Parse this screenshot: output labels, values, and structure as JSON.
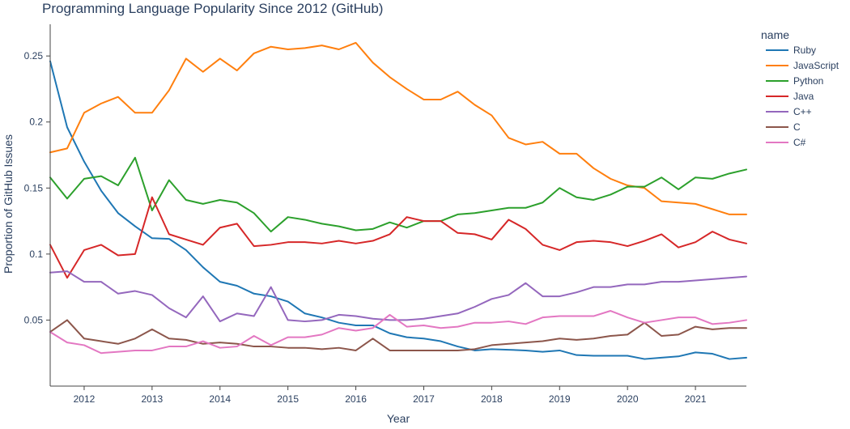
{
  "chart_data": {
    "type": "line",
    "title": "Programming Language Popularity Since 2012 (GitHub)",
    "xlabel": "Year",
    "ylabel": "Proportion of GitHub Issues",
    "legend_title": "name",
    "legend_position": "top-right",
    "grid": false,
    "xlim": [
      2011.5,
      2021.75
    ],
    "ylim": [
      0.0,
      0.274
    ],
    "x_ticks": [
      2012,
      2013,
      2014,
      2015,
      2016,
      2017,
      2018,
      2019,
      2020,
      2021
    ],
    "y_ticks": [
      0.05,
      0.1,
      0.15,
      0.2,
      0.25
    ],
    "y_tick_labels": [
      "0.05",
      "0.1",
      "0.15",
      "0.2",
      "0.25"
    ],
    "x": [
      2011.5,
      2011.75,
      2012.0,
      2012.25,
      2012.5,
      2012.75,
      2013.0,
      2013.25,
      2013.5,
      2013.75,
      2014.0,
      2014.25,
      2014.5,
      2014.75,
      2015.0,
      2015.25,
      2015.5,
      2015.75,
      2016.0,
      2016.25,
      2016.5,
      2016.75,
      2017.0,
      2017.25,
      2017.5,
      2017.75,
      2018.0,
      2018.25,
      2018.5,
      2018.75,
      2019.0,
      2019.25,
      2019.5,
      2019.75,
      2020.0,
      2020.25,
      2020.5,
      2020.75,
      2021.0,
      2021.25,
      2021.5,
      2021.75
    ],
    "series": [
      {
        "name": "Ruby",
        "color": "#1f77b4",
        "values": [
          0.246,
          0.196,
          0.17,
          0.148,
          0.131,
          0.121,
          0.112,
          0.1115,
          0.103,
          0.09,
          0.079,
          0.076,
          0.07,
          0.068,
          0.064,
          0.055,
          0.052,
          0.048,
          0.046,
          0.046,
          0.04,
          0.037,
          0.036,
          0.034,
          0.03,
          0.027,
          0.028,
          0.0275,
          0.027,
          0.026,
          0.027,
          0.0235,
          0.023,
          0.023,
          0.023,
          0.0205,
          0.0215,
          0.0225,
          0.0255,
          0.0245,
          0.0205,
          0.0215
        ]
      },
      {
        "name": "JavaScript",
        "color": "#ff7f0e",
        "values": [
          0.177,
          0.18,
          0.207,
          0.214,
          0.219,
          0.207,
          0.207,
          0.224,
          0.248,
          0.238,
          0.248,
          0.239,
          0.252,
          0.257,
          0.255,
          0.256,
          0.258,
          0.255,
          0.26,
          0.245,
          0.234,
          0.225,
          0.217,
          0.217,
          0.223,
          0.213,
          0.205,
          0.188,
          0.183,
          0.185,
          0.176,
          0.176,
          0.165,
          0.157,
          0.152,
          0.15,
          0.14,
          0.139,
          0.138,
          0.134,
          0.13,
          0.13
        ]
      },
      {
        "name": "Python",
        "color": "#2ca02c",
        "values": [
          0.158,
          0.142,
          0.157,
          0.159,
          0.152,
          0.173,
          0.133,
          0.156,
          0.141,
          0.138,
          0.141,
          0.139,
          0.131,
          0.117,
          0.128,
          0.126,
          0.123,
          0.121,
          0.118,
          0.119,
          0.124,
          0.12,
          0.125,
          0.125,
          0.13,
          0.131,
          0.133,
          0.135,
          0.135,
          0.139,
          0.15,
          0.143,
          0.141,
          0.145,
          0.151,
          0.151,
          0.158,
          0.149,
          0.158,
          0.157,
          0.161,
          0.164
        ]
      },
      {
        "name": "Java",
        "color": "#d62728",
        "values": [
          0.107,
          0.082,
          0.103,
          0.107,
          0.099,
          0.1,
          0.143,
          0.115,
          0.111,
          0.107,
          0.12,
          0.123,
          0.106,
          0.107,
          0.109,
          0.109,
          0.108,
          0.11,
          0.108,
          0.11,
          0.115,
          0.128,
          0.125,
          0.125,
          0.116,
          0.115,
          0.111,
          0.126,
          0.119,
          0.107,
          0.103,
          0.109,
          0.11,
          0.109,
          0.106,
          0.11,
          0.115,
          0.105,
          0.109,
          0.117,
          0.111,
          0.108
        ]
      },
      {
        "name": "C++",
        "color": "#9467bd",
        "values": [
          0.086,
          0.087,
          0.079,
          0.079,
          0.07,
          0.072,
          0.069,
          0.059,
          0.052,
          0.068,
          0.049,
          0.055,
          0.053,
          0.075,
          0.05,
          0.049,
          0.05,
          0.054,
          0.053,
          0.051,
          0.05,
          0.05,
          0.051,
          0.053,
          0.055,
          0.06,
          0.066,
          0.069,
          0.078,
          0.068,
          0.068,
          0.071,
          0.075,
          0.075,
          0.077,
          0.077,
          0.079,
          0.079,
          0.08,
          0.081,
          0.082,
          0.083
        ]
      },
      {
        "name": "C",
        "color": "#8c564b",
        "values": [
          0.041,
          0.05,
          0.036,
          0.034,
          0.032,
          0.036,
          0.043,
          0.036,
          0.035,
          0.032,
          0.033,
          0.032,
          0.03,
          0.03,
          0.029,
          0.029,
          0.028,
          0.029,
          0.027,
          0.036,
          0.027,
          0.027,
          0.027,
          0.027,
          0.027,
          0.028,
          0.031,
          0.032,
          0.033,
          0.034,
          0.036,
          0.035,
          0.036,
          0.038,
          0.039,
          0.048,
          0.038,
          0.039,
          0.045,
          0.043,
          0.044,
          0.044
        ]
      },
      {
        "name": "C#",
        "color": "#e377c2",
        "values": [
          0.041,
          0.033,
          0.031,
          0.025,
          0.026,
          0.027,
          0.027,
          0.03,
          0.03,
          0.034,
          0.029,
          0.03,
          0.038,
          0.031,
          0.037,
          0.037,
          0.039,
          0.044,
          0.042,
          0.044,
          0.054,
          0.045,
          0.046,
          0.044,
          0.045,
          0.048,
          0.048,
          0.049,
          0.047,
          0.052,
          0.053,
          0.053,
          0.053,
          0.057,
          0.052,
          0.048,
          0.05,
          0.052,
          0.052,
          0.047,
          0.048,
          0.05
        ]
      }
    ]
  }
}
